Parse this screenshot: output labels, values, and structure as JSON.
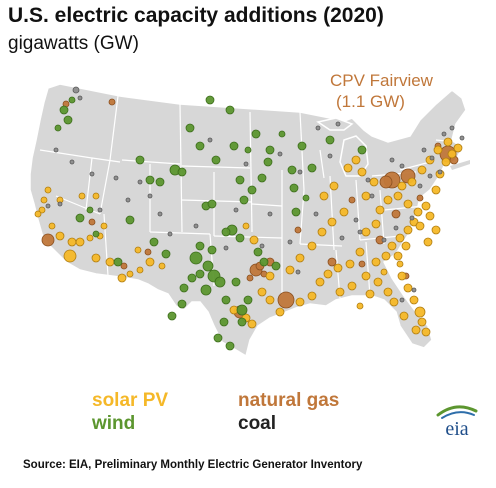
{
  "title": "U.S. electric capacity additions (2020)",
  "subtitle": "gigawatts (GW)",
  "callout": {
    "name": "CPV Fairview",
    "value": "(1.1 GW)"
  },
  "legend": {
    "solar": "solar PV",
    "gas": "natural gas",
    "wind": "wind",
    "coal": "coal"
  },
  "colors": {
    "solar": "#f5b828",
    "wind": "#5c962f",
    "gas": "#c0773a",
    "coal": "#333333",
    "land": "#d7d7d7",
    "borders": "#ffffff"
  },
  "logo": "eia",
  "source": "Source: EIA, Preliminary Monthly Electric Generator  Inventory"
}
